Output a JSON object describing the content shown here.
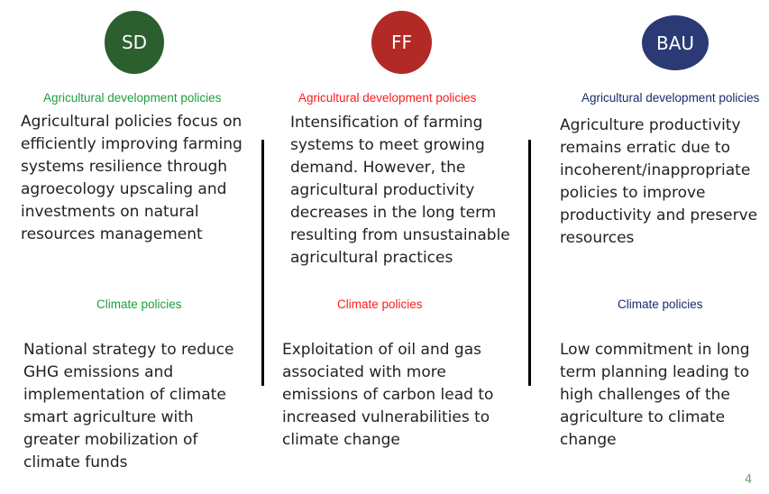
{
  "colors": {
    "sd": "#2c5f2e",
    "ff": "#b22a26",
    "bau": "#2b3a75",
    "sd_text": "#1d9e3e",
    "ff_text": "#ff1a1a",
    "bau_text": "#1b2a6b",
    "page_number": "#6aa36f"
  },
  "columns": [
    {
      "badge": "SD",
      "agri_heading": "Agricultural development policies",
      "agri_text": "Agricultural policies focus on efficiently improving farming systems resilience through agroecology upscaling and investments on natural resources management",
      "climate_heading": "Climate policies",
      "climate_text": "National strategy to reduce GHG emissions and implementation of climate smart agriculture with greater mobilization of climate funds"
    },
    {
      "badge": "FF",
      "agri_heading": "Agricultural development policies",
      "agri_text": "Intensification of farming systems to meet growing demand. However, the agricultural productivity decreases in the long term resulting from unsustainable agricultural practices",
      "climate_heading": "Climate policies",
      "climate_text": "Exploitation of oil and gas associated with more emissions of carbon lead to increased vulnerabilities to climate change"
    },
    {
      "badge": "BAU",
      "agri_heading": "Agricultural development policies",
      "agri_text": "Agriculture productivity remains erratic due to incoherent/inappropriate policies to improve productivity and preserve resources",
      "climate_heading": "Climate policies",
      "climate_text": "Low commitment in long term planning leading to high challenges of the agriculture to climate change"
    }
  ],
  "page_number": "4"
}
